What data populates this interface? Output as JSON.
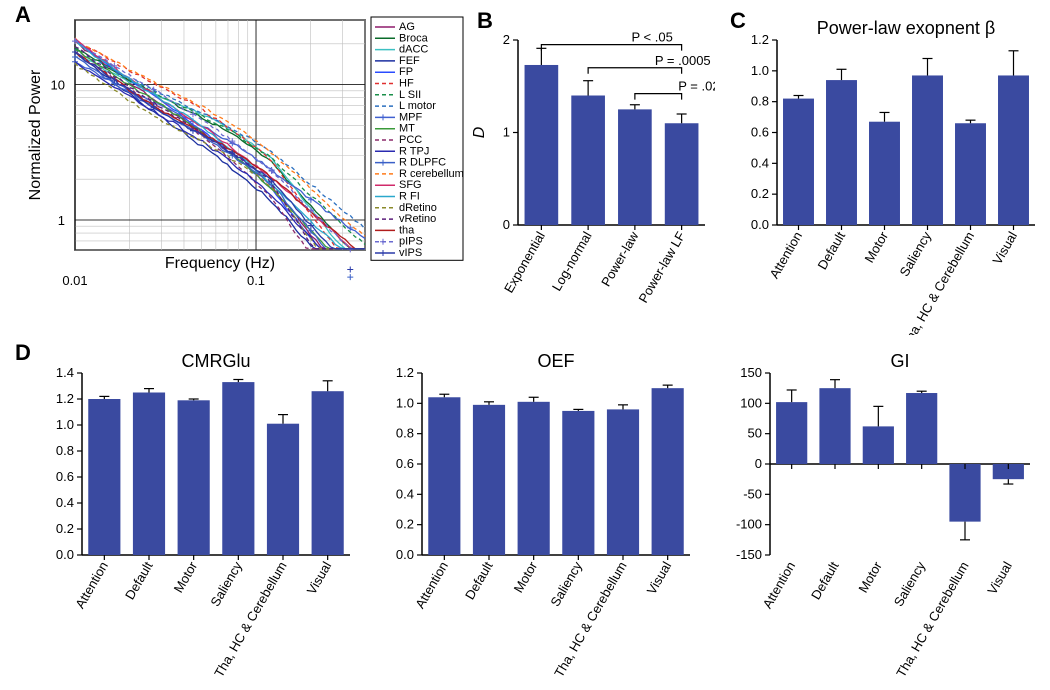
{
  "colors": {
    "bar": "#3a4aa0",
    "axis": "#000000",
    "grid": "#bfbfbf",
    "background": "#ffffff"
  },
  "panelA": {
    "label": "A",
    "xlabel": "Frequency (Hz)",
    "ylabel": "Normalized Power",
    "xmin": 0.01,
    "xmax": 0.4,
    "ymin": 0.6,
    "ymax": 30,
    "xticks": [
      0.01,
      0.1
    ],
    "yticks": [
      1,
      10
    ],
    "legend": [
      {
        "label": "AG",
        "color": "#8e1c6c",
        "dash": ""
      },
      {
        "label": "Broca",
        "color": "#0a6b2a",
        "dash": ""
      },
      {
        "label": "dACC",
        "color": "#3cc0c2",
        "dash": ""
      },
      {
        "label": "FEF",
        "color": "#1c2fa0",
        "dash": ""
      },
      {
        "label": "FP",
        "color": "#2a4cff",
        "dash": ""
      },
      {
        "label": "HF",
        "color": "#e03030",
        "dash": "4 3"
      },
      {
        "label": "L SII",
        "color": "#1a8f4a",
        "dash": "4 3"
      },
      {
        "label": "L motor",
        "color": "#2b6fbf",
        "dash": "4 3"
      },
      {
        "label": "MPF",
        "color": "#4060d0",
        "dash": "",
        "marker": "plus"
      },
      {
        "label": "MT",
        "color": "#3a9a3a",
        "dash": ""
      },
      {
        "label": "PCC",
        "color": "#8c2a6a",
        "dash": "4 3"
      },
      {
        "label": "R TPJ",
        "color": "#2a2ab0",
        "dash": ""
      },
      {
        "label": "R DLPFC",
        "color": "#3a60c8",
        "dash": "",
        "marker": "plus"
      },
      {
        "label": "R cerebellum",
        "color": "#ff7b1a",
        "dash": "4 3"
      },
      {
        "label": "SFG",
        "color": "#d02a6a",
        "dash": ""
      },
      {
        "label": "R FI",
        "color": "#2aa8cc",
        "dash": ""
      },
      {
        "label": "dRetino",
        "color": "#8a8a2a",
        "dash": "4 3"
      },
      {
        "label": "vRetino",
        "color": "#5a1c7a",
        "dash": "4 3"
      },
      {
        "label": "tha",
        "color": "#b01c1c",
        "dash": ""
      },
      {
        "label": "pIPS",
        "color": "#6a6ad0",
        "dash": "4 3",
        "marker": "plus"
      },
      {
        "label": "vIPS",
        "color": "#2a3aa8",
        "dash": "",
        "marker": "plus"
      }
    ],
    "series_seed": 42
  },
  "panelB": {
    "label": "B",
    "ylabel": "D",
    "ymin": 0,
    "ymax": 2,
    "ytick_step": 1,
    "categories": [
      "Exponential",
      "Log-normal",
      "Power-law",
      "Power-law LF"
    ],
    "values": [
      1.73,
      1.4,
      1.25,
      1.1
    ],
    "errors": [
      0.18,
      0.16,
      0.05,
      0.1
    ],
    "sig": [
      {
        "from": 0,
        "to": 3,
        "label": "P < .05",
        "y": 1.95
      },
      {
        "from": 1,
        "to": 3,
        "label": "P = .0005",
        "y": 1.7
      },
      {
        "from": 2,
        "to": 3,
        "label": "P = .02",
        "y": 1.42
      }
    ]
  },
  "panelC": {
    "label": "C",
    "title": "Power-law exopnent β",
    "ymin": 0,
    "ymax": 1.2,
    "ytick_step": 0.2,
    "categories": [
      "Attention",
      "Default",
      "Motor",
      "Saliency",
      "Tha, HC & Cerebellum",
      "Visual"
    ],
    "values": [
      0.82,
      0.94,
      0.67,
      0.97,
      0.66,
      0.97
    ],
    "errors": [
      0.02,
      0.07,
      0.06,
      0.11,
      0.02,
      0.16
    ]
  },
  "panelD": {
    "label": "D",
    "categories": [
      "Attention",
      "Default",
      "Motor",
      "Saliency",
      "Tha, HC & Cerebellum",
      "Visual"
    ],
    "charts": [
      {
        "title": "CMRGlu",
        "ymin": 0,
        "ymax": 1.4,
        "ytick_step": 0.2,
        "values": [
          1.2,
          1.25,
          1.19,
          1.33,
          1.01,
          1.26
        ],
        "errors": [
          0.02,
          0.03,
          0.01,
          0.02,
          0.07,
          0.08
        ]
      },
      {
        "title": "OEF",
        "ymin": 0,
        "ymax": 1.2,
        "ytick_step": 0.2,
        "values": [
          1.04,
          0.99,
          1.01,
          0.95,
          0.96,
          1.1
        ],
        "errors": [
          0.02,
          0.02,
          0.03,
          0.01,
          0.03,
          0.02
        ]
      },
      {
        "title": "GI",
        "ymin": -150,
        "ymax": 150,
        "ytick_step": 50,
        "values": [
          102,
          125,
          62,
          117,
          -95,
          -25
        ],
        "errors": [
          20,
          14,
          33,
          3,
          30,
          8
        ]
      }
    ]
  }
}
